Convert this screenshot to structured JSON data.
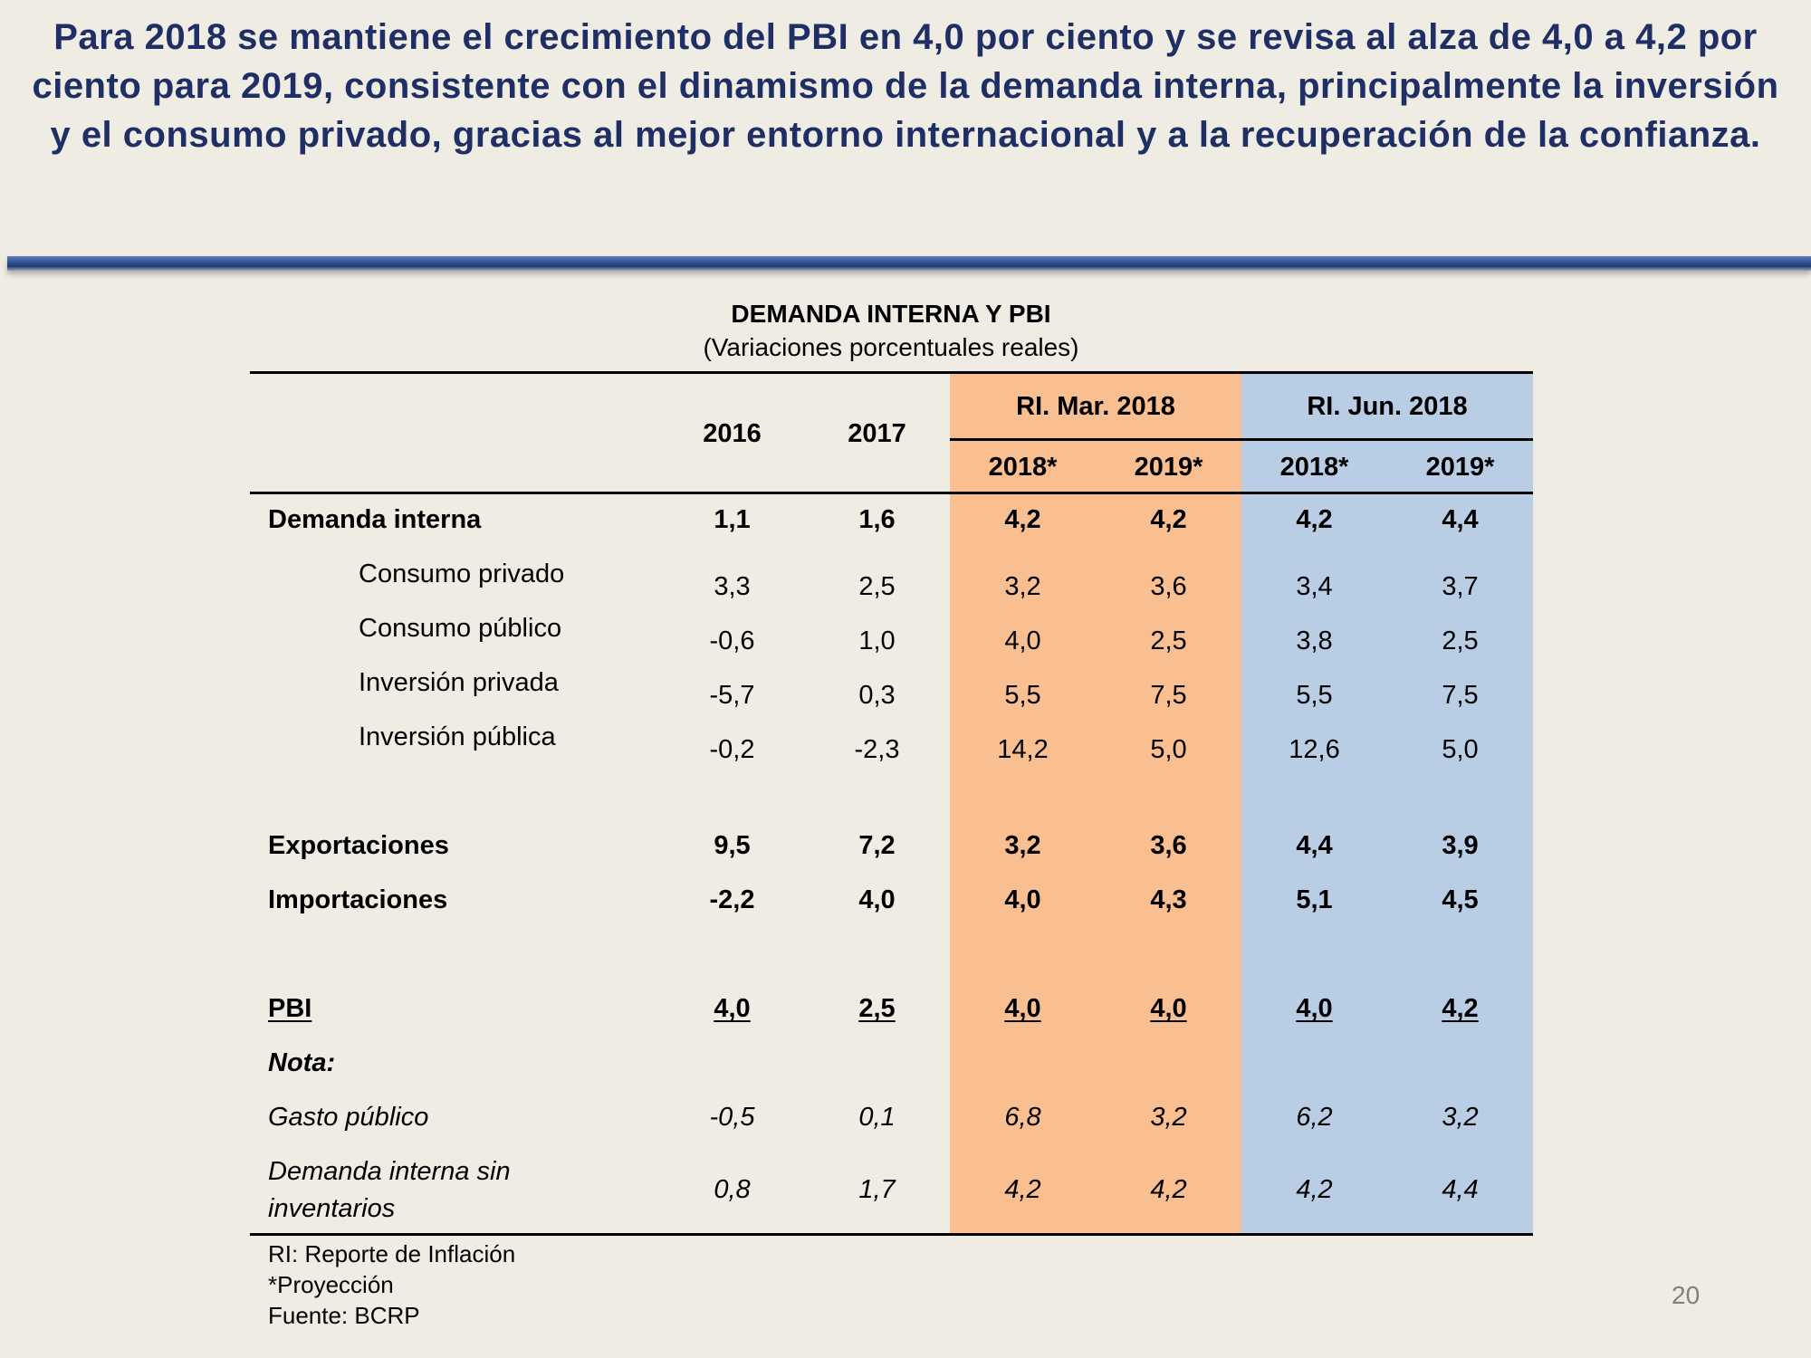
{
  "headline": "Para 2018 se mantiene el crecimiento del PBI en 4,0 por ciento y se revisa al alza de 4,0 a 4,2 por ciento para 2019, consistente con el dinamismo de la demanda interna, principalmente la inversión y el consumo privado, gracias al mejor entorno internacional y a la recuperación de la confianza.",
  "table": {
    "title": "DEMANDA INTERNA Y PBI",
    "subtitle": "(Variaciones porcentuales reales)",
    "col_2016": "2016",
    "col_2017": "2017",
    "group_mar": "RI. Mar. 2018",
    "group_jun": "RI. Jun. 2018",
    "mar_2018": "2018*",
    "mar_2019": "2019*",
    "jun_2018": "2018*",
    "jun_2019": "2019*",
    "rows": [
      {
        "label": "Demanda interna",
        "values": [
          "1,1",
          "1,6",
          "4,2",
          "4,2",
          "4,2",
          "4,4"
        ]
      },
      {
        "label": "Consumo privado",
        "values": [
          "3,3",
          "2,5",
          "3,2",
          "3,6",
          "3,4",
          "3,7"
        ]
      },
      {
        "label": "Consumo público",
        "values": [
          "-0,6",
          "1,0",
          "4,0",
          "2,5",
          "3,8",
          "2,5"
        ]
      },
      {
        "label": "Inversión privada",
        "values": [
          "-5,7",
          "0,3",
          "5,5",
          "7,5",
          "5,5",
          "7,5"
        ]
      },
      {
        "label": "Inversión pública",
        "values": [
          "-0,2",
          "-2,3",
          "14,2",
          "5,0",
          "12,6",
          "5,0"
        ]
      },
      {
        "label": "Exportaciones",
        "values": [
          "9,5",
          "7,2",
          "3,2",
          "3,6",
          "4,4",
          "3,9"
        ]
      },
      {
        "label": "Importaciones",
        "values": [
          "-2,2",
          "4,0",
          "4,0",
          "4,3",
          "5,1",
          "4,5"
        ]
      },
      {
        "label": "PBI",
        "values": [
          "4,0",
          "2,5",
          "4,0",
          "4,0",
          "4,0",
          "4,2"
        ]
      },
      {
        "label": "Nota:"
      },
      {
        "label": "Gasto público",
        "values": [
          "-0,5",
          "0,1",
          "6,8",
          "3,2",
          "6,2",
          "3,2"
        ]
      },
      {
        "label_line1": "Demanda interna sin",
        "label_line2": "inventarios",
        "values": [
          "0,8",
          "1,7",
          "4,2",
          "4,2",
          "4,2",
          "4,4"
        ]
      }
    ]
  },
  "footnotes": [
    "RI: Reporte de Inflación",
    "*Proyección",
    "Fuente: BCRP"
  ],
  "page_number": "20",
  "colors": {
    "headline": "#1f2f66",
    "mar_band": "#f9bf91",
    "jun_band": "#b9cde5",
    "background": "#efece3"
  }
}
